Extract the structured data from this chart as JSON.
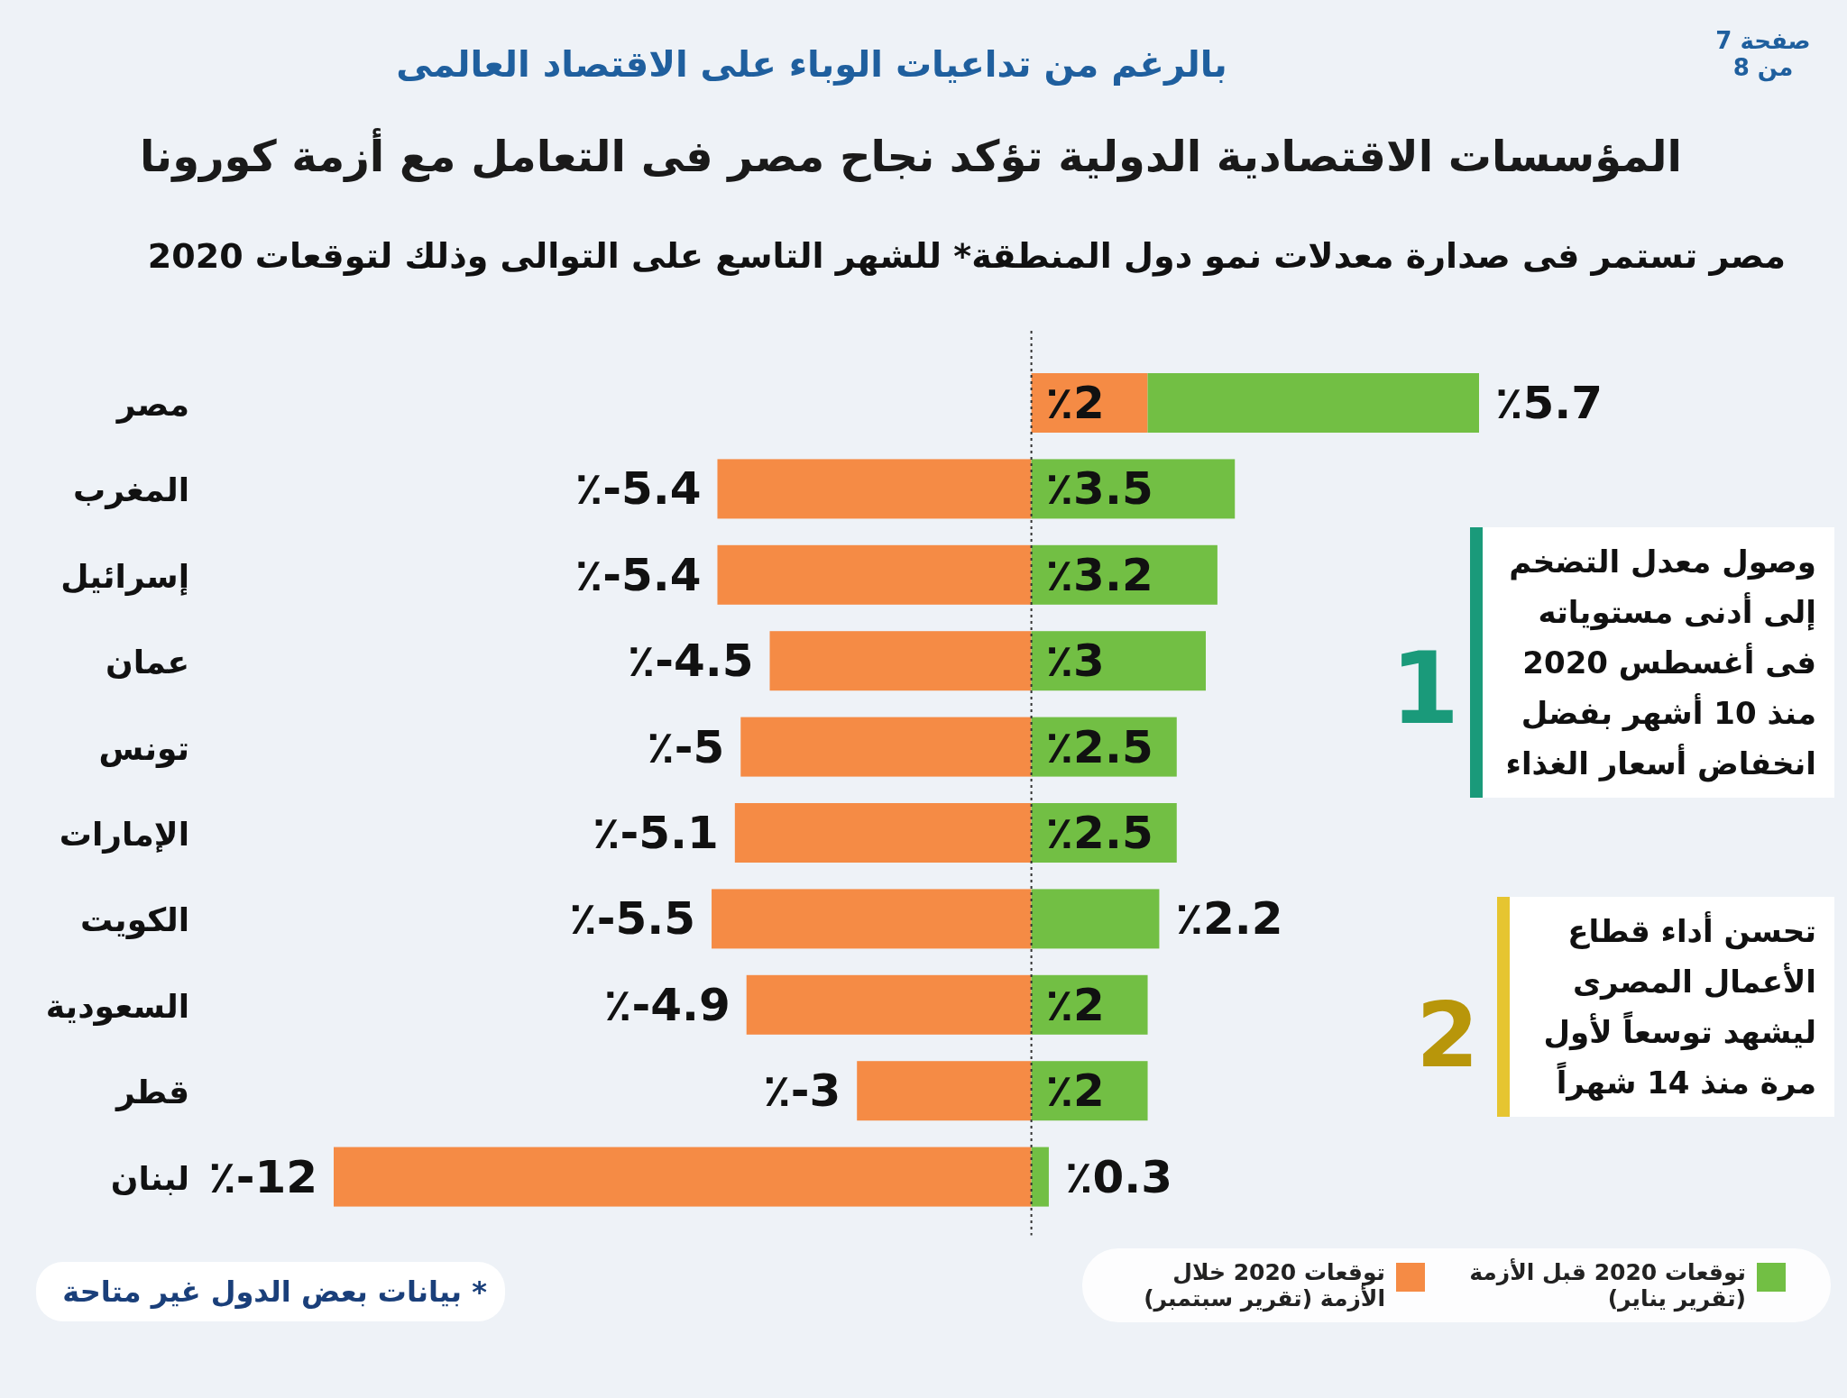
{
  "chart_data": {
    "type": "bar",
    "orientation": "horizontal",
    "stacked": true,
    "subtitle": "بالرغم من تداعيات الوباء على الاقتصاد العالمى",
    "title": "المؤسسات الاقتصادية الدولية تؤكد نجاح مصر فى التعامل مع أزمة كورونا",
    "annotations": [
      "مصر تستمر فى صدارة معدلات نمو دول المنطقة* للشهر التاسع على التوالى وذلك لتوقعات 2020",
      "صفحة 7 من 8",
      "وصول معدل التضخم إلى أدنى مستوياته فى أغسطس 2020 منذ 10 أشهر بفضل انخفاض أسعار الغذاء",
      "1",
      "تحسن أداء قطاع الأعمال المصرى ليشهد توسعاً لأول مرة منذ 14 شهراً",
      "2",
      "* بيانات بعض الدول غير متاحة"
    ],
    "categories": [
      "مصر",
      "المغرب",
      "إسرائيل",
      "عمان",
      "تونس",
      "الإمارات",
      "الكويت",
      "السعودية",
      "قطر",
      "لبنان"
    ],
    "series": [
      {
        "name": "توقعات 2020 خلال الأزمة (تقرير سبتمبر)",
        "color": "#f58b45",
        "values": [
          2,
          -5.4,
          -5.4,
          -4.5,
          -5,
          -5.1,
          -5.5,
          -4.9,
          -3,
          -12
        ],
        "value_labels": [
          "٪2",
          "٪-5.4",
          "٪-5.4",
          "٪-4.5",
          "٪-5",
          "٪-5.1",
          "٪-5.5",
          "٪-4.9",
          "٪-3",
          "٪-12"
        ]
      },
      {
        "name": "توقعات 2020 قبل الأزمة (تقرير يناير)",
        "color": "#72bf44",
        "values": [
          5.7,
          3.5,
          3.2,
          3,
          2.5,
          2.5,
          2.2,
          2,
          2,
          0.3
        ],
        "value_labels": [
          "٪5.7",
          "٪3.5",
          "٪3.2",
          "٪3",
          "٪2.5",
          "٪2.5",
          "٪2.2",
          "٪2",
          "٪2",
          "٪0.3"
        ]
      }
    ],
    "ref_lines": [
      {
        "axis": "x",
        "value": 0,
        "color": "#333333",
        "line_style": "dotted"
      }
    ],
    "legend": "bottom"
  }
}
